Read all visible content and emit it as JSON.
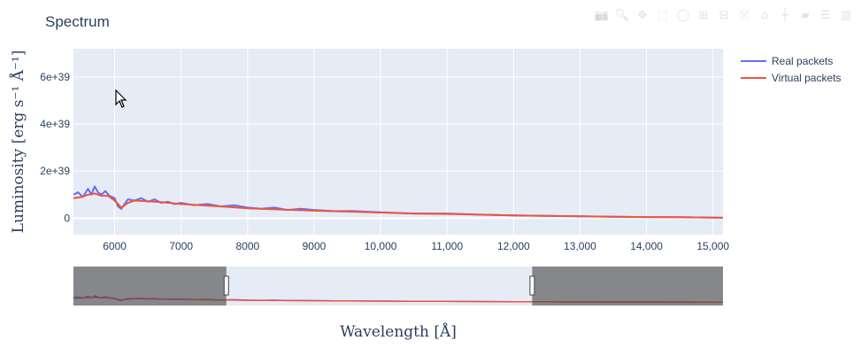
{
  "modebar": {
    "buttons": [
      {
        "name": "camera-icon",
        "glyph": "📷"
      },
      {
        "name": "zoom-icon",
        "glyph": "🔍"
      },
      {
        "name": "pan-icon",
        "glyph": "✥"
      },
      {
        "name": "box-select-icon",
        "glyph": "⬚"
      },
      {
        "name": "lasso-select-icon",
        "glyph": "◯"
      },
      {
        "name": "zoom-in-icon",
        "glyph": "⊞"
      },
      {
        "name": "zoom-out-icon",
        "glyph": "⊟"
      },
      {
        "name": "autoscale-icon",
        "glyph": "⤧"
      },
      {
        "name": "reset-axes-icon",
        "glyph": "⌂"
      },
      {
        "name": "spike-lines-icon",
        "glyph": "┼"
      },
      {
        "name": "hover-closest-icon",
        "glyph": "▰"
      },
      {
        "name": "hover-compare-icon",
        "glyph": "☰"
      },
      {
        "name": "plotly-logo-icon",
        "glyph": "▥"
      }
    ]
  },
  "chart_data": {
    "type": "line",
    "title": "Spectrum",
    "xlabel": "Wavelength [Å]",
    "ylabel": "Luminosity [erg s⁻¹ Å⁻¹]",
    "xlim": [
      5380,
      15150
    ],
    "ylim": [
      -7e+38,
      7.2e+39
    ],
    "x_tick_values": [
      6000,
      7000,
      8000,
      9000,
      10000,
      11000,
      12000,
      13000,
      14000,
      15000
    ],
    "x_tick_labels": [
      "6000",
      "7000",
      "8000",
      "9000",
      "10,000",
      "11,000",
      "12,000",
      "13,000",
      "14,000",
      "15,000"
    ],
    "y_tick_values": [
      0,
      2e+39,
      4e+39,
      6e+39
    ],
    "y_tick_labels": [
      "0",
      "2e+39",
      "4e+39",
      "6e+39"
    ],
    "grid": true,
    "legend_position": "top-right",
    "series": [
      {
        "name": "Real packets",
        "color": "#636efa",
        "x": [
          5380,
          5450,
          5520,
          5600,
          5650,
          5700,
          5750,
          5800,
          5860,
          5920,
          6000,
          6050,
          6100,
          6150,
          6200,
          6300,
          6400,
          6500,
          6600,
          6700,
          6800,
          6900,
          7000,
          7200,
          7400,
          7600,
          7800,
          8000,
          8200,
          8400,
          8600,
          8800,
          9000,
          9300,
          9600,
          10000,
          10500,
          11000,
          11500,
          12000,
          12500,
          13000,
          13500,
          14000,
          14500,
          15150
        ],
        "y": [
          1e+39,
          1.1e+39,
          9e+38,
          1.25e+39,
          1e+39,
          1.35e+39,
          1.1e+39,
          1e+39,
          1.15e+39,
          9.5e+38,
          8.5e+38,
          5e+38,
          4e+38,
          6e+38,
          8e+38,
          7.5e+38,
          8.5e+38,
          7e+38,
          8e+38,
          6.5e+38,
          7e+38,
          6e+38,
          6.5e+38,
          5.5e+38,
          6e+38,
          5e+38,
          5.5e+38,
          4.5e+38,
          4e+38,
          4.5e+38,
          3.5e+38,
          4e+38,
          3.5e+38,
          3e+38,
          3e+38,
          2.5e+38,
          2e+38,
          2e+38,
          1.5e+38,
          1.2e+38,
          1e+38,
          8e+37,
          6e+37,
          5e+37,
          4e+37,
          2e+37
        ]
      },
      {
        "name": "Virtual packets",
        "color": "#ef553b",
        "x": [
          5380,
          5500,
          5600,
          5700,
          5800,
          5900,
          6000,
          6100,
          6200,
          6300,
          6500,
          6700,
          7000,
          7300,
          7600,
          8000,
          8500,
          9000,
          9500,
          10000,
          10500,
          11000,
          11500,
          12000,
          12500,
          13000,
          13500,
          14000,
          14500,
          15150
        ],
        "y": [
          8.5e+38,
          9e+38,
          1e+39,
          1.05e+39,
          9.5e+38,
          9.5e+38,
          7.5e+38,
          4.5e+38,
          6.5e+38,
          7.5e+38,
          7.2e+38,
          6.8e+38,
          6e+38,
          5.5e+38,
          5e+38,
          4.2e+38,
          3.7e+38,
          3.2e+38,
          2.8e+38,
          2.4e+38,
          2e+38,
          1.8e+38,
          1.5e+38,
          1.2e+38,
          1e+38,
          8e+37,
          6e+37,
          5e+37,
          4e+37,
          2e+37
        ]
      }
    ],
    "rangeslider": {
      "selected_range": [
        7680,
        12280
      ],
      "full_range": [
        5380,
        15150
      ]
    }
  }
}
